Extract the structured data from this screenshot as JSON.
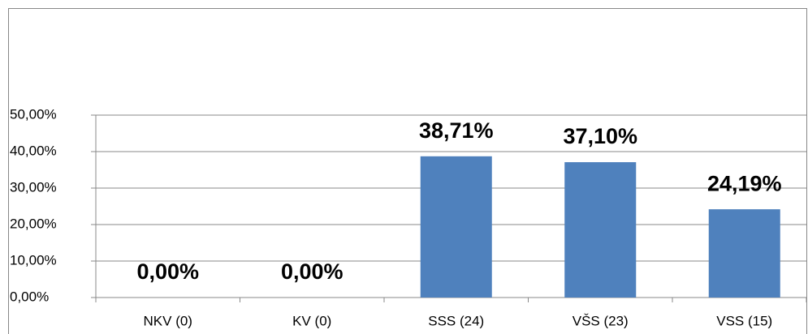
{
  "chart_data": {
    "type": "bar",
    "categories": [
      "NKV (0)",
      "KV (0)",
      "SSS (24)",
      "VŠS (23)",
      "VSS (15)"
    ],
    "values": [
      0,
      0,
      38.71,
      37.1,
      24.19
    ],
    "value_labels": [
      "0,00%",
      "0,00%",
      "38,71%",
      "37,10%",
      "24,19%"
    ],
    "color": "#4f81bd",
    "ylim": [
      0,
      50
    ],
    "yticks": [
      {
        "value": 0,
        "label": "0,00%"
      },
      {
        "value": 10,
        "label": "10,00%"
      },
      {
        "value": 20,
        "label": "20,00%"
      },
      {
        "value": 30,
        "label": "30,00%"
      },
      {
        "value": 40,
        "label": "40,00%"
      },
      {
        "value": 50,
        "label": "50,00%"
      }
    ],
    "grid": true
  }
}
